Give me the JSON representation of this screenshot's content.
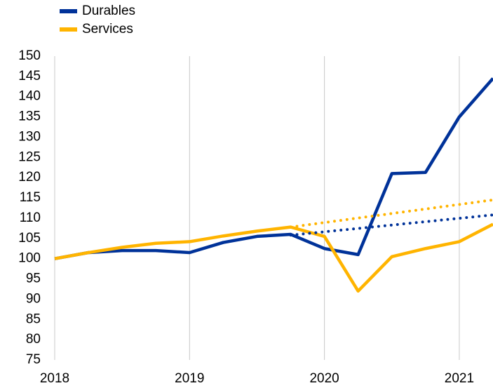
{
  "chart_data": {
    "type": "line",
    "xlim": [
      2018,
      2021.25
    ],
    "xticks": [
      2018,
      2019,
      2020,
      2021
    ],
    "ylim": [
      75,
      150
    ],
    "yticks": [
      75,
      80,
      85,
      90,
      95,
      100,
      105,
      110,
      115,
      120,
      125,
      130,
      135,
      140,
      145,
      150
    ],
    "grid": "x",
    "legend": "upper left",
    "series": [
      {
        "name": "Durables",
        "color": "#003299",
        "style": "solid",
        "x": [
          2018,
          2018.25,
          2018.5,
          2018.75,
          2019,
          2019.25,
          2019.5,
          2019.75,
          2020,
          2020.25,
          2020.5,
          2020.75,
          2021,
          2021.25
        ],
        "values": [
          100,
          101.5,
          102,
          102,
          101.5,
          104,
          105.5,
          106,
          102.5,
          101,
          121,
          121.3,
          135,
          144.5
        ]
      },
      {
        "name": "Services",
        "color": "#ffb400",
        "style": "solid",
        "x": [
          2018,
          2018.25,
          2018.5,
          2018.75,
          2019,
          2019.25,
          2019.5,
          2019.75,
          2020,
          2020.25,
          2020.5,
          2020.75,
          2021,
          2021.25
        ],
        "values": [
          100,
          101.5,
          102.8,
          103.8,
          104.2,
          105.6,
          106.8,
          107.8,
          105.5,
          92,
          100.5,
          102.5,
          104.2,
          108.5
        ]
      },
      {
        "color": "#003299",
        "style": "dotted",
        "x": [
          2019.75,
          2021.25
        ],
        "values": [
          105.8,
          110.8
        ]
      },
      {
        "color": "#ffb400",
        "style": "dotted",
        "x": [
          2019.75,
          2021.25
        ],
        "values": [
          107.8,
          114.5
        ]
      }
    ]
  }
}
